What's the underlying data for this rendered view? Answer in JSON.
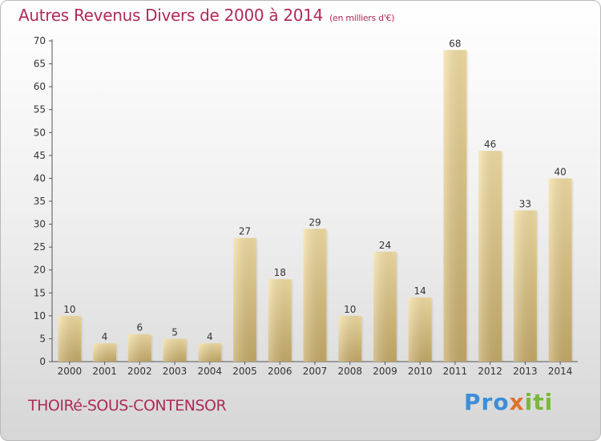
{
  "title": "Autres Revenus Divers de 2000 à 2014",
  "unit_note": "(en milliers d'€)",
  "location": "THOIRé-SOUS-CONTENSOR",
  "brand": {
    "parts": [
      "Pro",
      "x",
      "iti"
    ],
    "colors": [
      "#3c8ed8",
      "#e0722a",
      "#79b83a"
    ]
  },
  "colors": {
    "title": "#b02a5a",
    "bar_light": "#f4dc9c",
    "bar_dark": "#c9ae6a",
    "axis": "#555555"
  },
  "chart_data": {
    "type": "bar",
    "title": "Autres Revenus Divers de 2000 à 2014",
    "xlabel": "",
    "ylabel": "",
    "categories": [
      "2000",
      "2001",
      "2002",
      "2003",
      "2004",
      "2005",
      "2006",
      "2007",
      "2008",
      "2009",
      "2010",
      "2011",
      "2012",
      "2013",
      "2014"
    ],
    "values": [
      10,
      4,
      6,
      5,
      4,
      27,
      18,
      29,
      10,
      24,
      14,
      68,
      46,
      33,
      40
    ],
    "ylim": [
      0,
      70
    ],
    "yticks": [
      0,
      5,
      10,
      15,
      20,
      25,
      30,
      35,
      40,
      45,
      50,
      55,
      60,
      65,
      70
    ],
    "grid": false,
    "data_labels": true
  }
}
